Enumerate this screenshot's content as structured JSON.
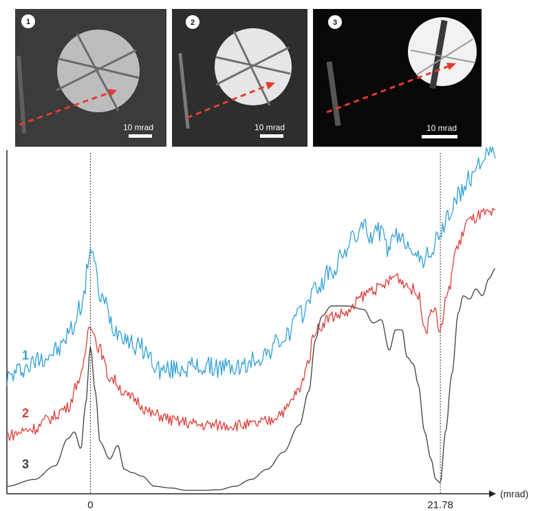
{
  "panels": [
    {
      "badge": "1",
      "scale_label": "10 mrad",
      "bg": "#3b3b3b",
      "disc": "#bdbdbd"
    },
    {
      "badge": "2",
      "scale_label": "10 mrad",
      "bg": "#2e2e2e",
      "disc": "#e6e6e6"
    },
    {
      "badge": "3",
      "scale_label": "10 mrad",
      "bg": "#080808",
      "disc": "#f2f2f2"
    }
  ],
  "arrow_color": "#e53a2f",
  "chart_data": {
    "type": "line",
    "xlabel": "(mrad)",
    "x_ticks": [
      "0",
      "21.78"
    ],
    "x_tick_values": [
      0,
      21.78
    ],
    "xlim": [
      -5.2,
      25.2
    ],
    "ylabel": "",
    "ylim": [
      0,
      1
    ],
    "grid": false,
    "legend": "inline labels at left",
    "series": [
      {
        "name": "1",
        "color": "#2e9fd6",
        "x": [
          -5.2,
          -4,
          -3,
          -2,
          -1.2,
          -0.5,
          0,
          0.7,
          1.6,
          3,
          4.5,
          6,
          8,
          9.5,
          10.5,
          12,
          13,
          14,
          15,
          16,
          16.5,
          17,
          17.5,
          18,
          18.5,
          19,
          19.8,
          20.5,
          21.2,
          21.78,
          22.3,
          23,
          23.6,
          24.2,
          25.2
        ],
        "y": [
          0.34,
          0.37,
          0.4,
          0.42,
          0.48,
          0.56,
          0.72,
          0.57,
          0.48,
          0.43,
          0.36,
          0.37,
          0.37,
          0.37,
          0.4,
          0.45,
          0.52,
          0.6,
          0.65,
          0.72,
          0.76,
          0.78,
          0.76,
          0.77,
          0.72,
          0.75,
          0.74,
          0.68,
          0.71,
          0.76,
          0.82,
          0.88,
          0.92,
          0.98,
          1.0
        ]
      },
      {
        "name": "2",
        "color": "#de3b36",
        "x": [
          -5.2,
          -3.5,
          -2.5,
          -1.5,
          -0.6,
          0,
          0.5,
          1.2,
          2.5,
          4,
          5.5,
          7,
          8.5,
          10,
          11,
          12,
          13,
          13.5,
          14,
          15,
          16,
          17,
          17.5,
          18,
          18.5,
          19,
          19.5,
          20,
          20.4,
          20.9,
          21.3,
          21.78,
          22.2,
          22.8,
          23.5,
          24.5,
          25.2
        ],
        "y": [
          0.17,
          0.19,
          0.22,
          0.25,
          0.34,
          0.5,
          0.43,
          0.34,
          0.28,
          0.23,
          0.21,
          0.2,
          0.2,
          0.2,
          0.21,
          0.24,
          0.3,
          0.38,
          0.48,
          0.52,
          0.53,
          0.58,
          0.6,
          0.6,
          0.62,
          0.64,
          0.62,
          0.6,
          0.58,
          0.48,
          0.55,
          0.48,
          0.58,
          0.72,
          0.8,
          0.82,
          0.82
        ]
      },
      {
        "name": "3",
        "color": "#3e3e3e",
        "x": [
          -5.2,
          -3.5,
          -2.2,
          -1.4,
          -1,
          -0.6,
          -0.3,
          0,
          0.3,
          0.6,
          1.2,
          1.7,
          2.1,
          2.6,
          3.2,
          4,
          5,
          6,
          7,
          8,
          9,
          10,
          11,
          12,
          13,
          13.6,
          14,
          14.4,
          15,
          16,
          17,
          17.6,
          18.1,
          18.6,
          19,
          19.4,
          19.7,
          20.1,
          20.4,
          20.8,
          21.2,
          21.5,
          21.78,
          22.1,
          22.5,
          22.9,
          23.2,
          23.6,
          24,
          24.4,
          24.8,
          25.2
        ],
        "y": [
          0.02,
          0.04,
          0.08,
          0.16,
          0.18,
          0.13,
          0.26,
          0.43,
          0.3,
          0.15,
          0.1,
          0.14,
          0.07,
          0.06,
          0.05,
          0.02,
          0.015,
          0.008,
          0.008,
          0.01,
          0.02,
          0.04,
          0.07,
          0.12,
          0.2,
          0.3,
          0.45,
          0.52,
          0.55,
          0.55,
          0.54,
          0.5,
          0.51,
          0.42,
          0.48,
          0.48,
          0.4,
          0.38,
          0.32,
          0.18,
          0.1,
          0.04,
          0.03,
          0.18,
          0.35,
          0.53,
          0.58,
          0.57,
          0.6,
          0.58,
          0.63,
          0.66
        ]
      }
    ]
  }
}
